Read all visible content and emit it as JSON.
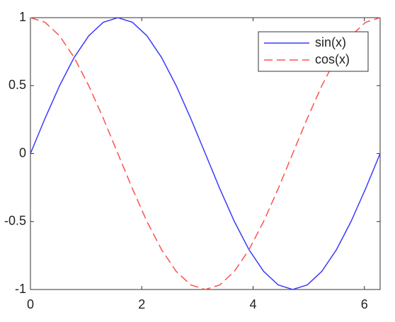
{
  "chart_data": {
    "type": "line",
    "x": [
      0,
      0.262,
      0.524,
      0.785,
      1.047,
      1.309,
      1.571,
      1.833,
      2.094,
      2.356,
      2.618,
      2.88,
      3.142,
      3.403,
      3.665,
      3.927,
      4.189,
      4.451,
      4.712,
      4.974,
      5.236,
      5.498,
      5.76,
      6.021,
      6.283
    ],
    "series": [
      {
        "name": "sin(x)",
        "color": "#3b3bff",
        "dash": false,
        "values": [
          0,
          0.259,
          0.5,
          0.707,
          0.866,
          0.966,
          1,
          0.966,
          0.866,
          0.707,
          0.5,
          0.259,
          0,
          -0.259,
          -0.5,
          -0.707,
          -0.866,
          -0.966,
          -1,
          -0.966,
          -0.866,
          -0.707,
          -0.5,
          -0.259,
          0
        ]
      },
      {
        "name": "cos(x)",
        "color": "#ff5050",
        "dash": true,
        "values": [
          1,
          0.966,
          0.866,
          0.707,
          0.5,
          0.259,
          0,
          -0.259,
          -0.5,
          -0.707,
          -0.866,
          -0.966,
          -1,
          -0.966,
          -0.866,
          -0.707,
          -0.5,
          -0.259,
          0,
          0.259,
          0.5,
          0.707,
          0.866,
          0.966,
          1
        ]
      }
    ],
    "xlim": [
      0,
      6.2832
    ],
    "xticks": [
      0,
      2,
      4,
      6
    ],
    "ylim": [
      -1,
      1
    ],
    "yticks": [
      -1,
      -0.5,
      0,
      0.5,
      1
    ],
    "grid": false,
    "legend": "upper right"
  }
}
